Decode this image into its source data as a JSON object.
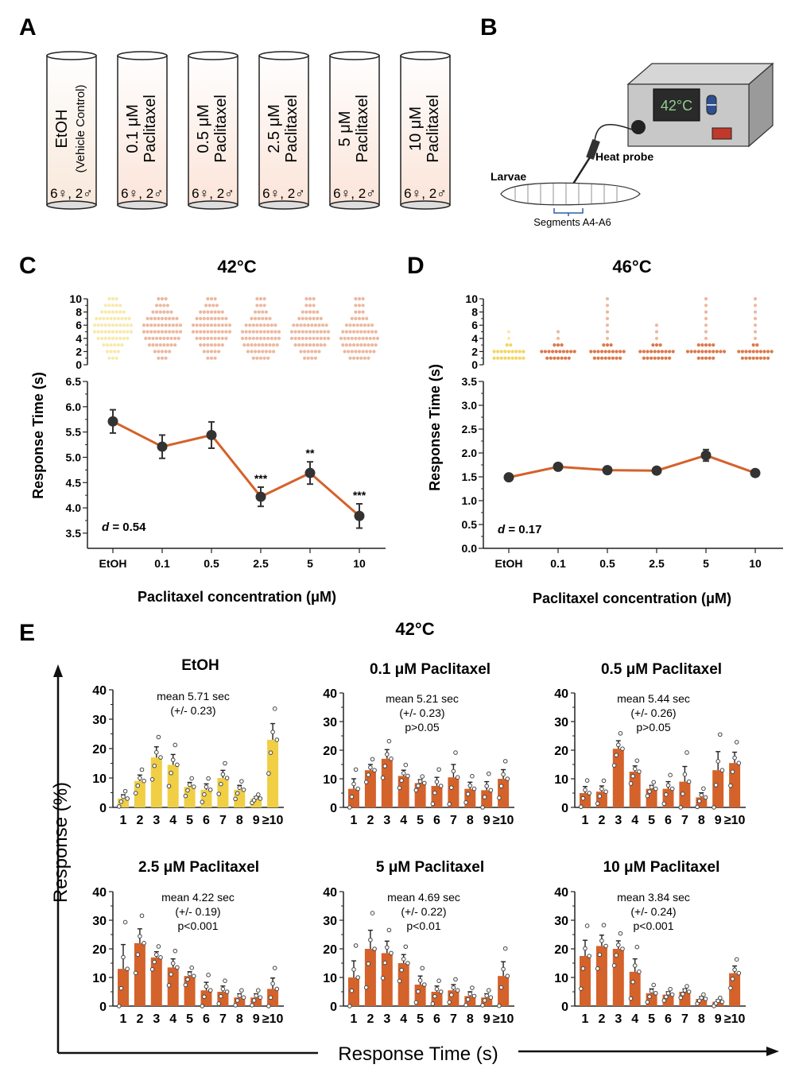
{
  "panel_letters": {
    "a": "A",
    "b": "B",
    "c": "C",
    "d": "D",
    "e": "E"
  },
  "panel_a": {
    "tubes": [
      {
        "line1": "EtOH",
        "line2": "(Vehicle Control)",
        "count": "6♀, 2♂"
      },
      {
        "line1": "0.1 μM",
        "line2": "Paclitaxel",
        "count": "6♀, 2♂"
      },
      {
        "line1": "0.5 μM",
        "line2": "Paclitaxel",
        "count": "6♀, 2♂"
      },
      {
        "line1": "2.5 μM",
        "line2": "Paclitaxel",
        "count": "6♀, 2♂"
      },
      {
        "line1": "5 μM",
        "line2": "Paclitaxel",
        "count": "6♀, 2♂"
      },
      {
        "line1": "10 μM",
        "line2": "Paclitaxel",
        "count": "6♀, 2♂"
      }
    ]
  },
  "panel_b": {
    "display": "42°C",
    "heat_probe_label": "Heat probe",
    "larvae_label": "Larvae",
    "segments_label": "Segments A4-A6"
  },
  "colors": {
    "etoh": "#f0cf45",
    "paclitaxel": "#d4622b",
    "line": "#d4622b",
    "marker": "#333333"
  },
  "chart_data": [
    {
      "id": "C",
      "type": "line",
      "title": "42°C",
      "xlabel": "Paclitaxel concentration (μM)",
      "ylabel": "Response Time (s)",
      "categories": [
        "EtOH",
        "0.1",
        "0.5",
        "2.5",
        "5",
        "10"
      ],
      "values": [
        5.71,
        5.21,
        5.44,
        4.22,
        4.69,
        3.84
      ],
      "errors": [
        0.23,
        0.23,
        0.26,
        0.19,
        0.22,
        0.24
      ],
      "ylim": [
        3.2,
        6.5
      ],
      "yticks": [
        "3.5",
        "4.0",
        "4.5",
        "5.0",
        "5.5",
        "6.0",
        "6.5"
      ],
      "significance": [
        "",
        "",
        "",
        "***",
        "**",
        "***"
      ],
      "effect_size": "d = 0.54",
      "dot_strip": {
        "yticks": [
          "0",
          "2",
          "4",
          "6",
          "8",
          "10"
        ],
        "max_levels": [
          10,
          10,
          10,
          10,
          10,
          10
        ]
      }
    },
    {
      "id": "D",
      "type": "line",
      "title": "46°C",
      "xlabel": "Paclitaxel concentration (μM)",
      "ylabel": "Response Time (s)",
      "categories": [
        "EtOH",
        "0.1",
        "0.5",
        "2.5",
        "5",
        "10"
      ],
      "values": [
        1.49,
        1.71,
        1.64,
        1.63,
        1.95,
        1.58
      ],
      "errors": [
        0.04,
        0.07,
        0.05,
        0.05,
        0.12,
        0.07
      ],
      "ylim": [
        0,
        3.5
      ],
      "yticks": [
        "0.0",
        "0.5",
        "1.0",
        "1.5",
        "2.0",
        "2.5",
        "3.0",
        "3.5"
      ],
      "significance": [
        "",
        "",
        "",
        "",
        "",
        ""
      ],
      "effect_size": "d = 0.17",
      "dot_strip": {
        "yticks": [
          "0",
          "2",
          "4",
          "6",
          "8",
          "10"
        ],
        "max_levels": [
          5,
          5,
          10,
          6,
          10,
          10
        ]
      }
    },
    {
      "id": "E",
      "type": "bar",
      "title": "42°C",
      "xlabel": "Response Time (s)",
      "ylabel": "Response (%)",
      "categories": [
        "1",
        "2",
        "3",
        "4",
        "5",
        "6",
        "7",
        "8",
        "9",
        "≥10"
      ],
      "ylim": [
        0,
        40
      ],
      "yticks": [
        "0",
        "10",
        "20",
        "30",
        "40"
      ],
      "subplots": [
        {
          "title": "EtOH",
          "ann": [
            "mean 5.71 sec",
            "(+/- 0.23)"
          ],
          "values": [
            3,
            9,
            17,
            14.5,
            7,
            6,
            10,
            6,
            3,
            23
          ],
          "errors": [
            1.3,
            2,
            3.6,
            3.5,
            1.5,
            2,
            2.6,
            1.5,
            0.7,
            5.5
          ]
        },
        {
          "title": "0.1 μM Paclitaxel",
          "ann": [
            "mean 5.21 sec",
            "(+/- 0.23)",
            "p>0.05"
          ],
          "values": [
            6.5,
            13,
            17,
            11,
            8.5,
            7.5,
            10.5,
            6.5,
            6,
            10
          ],
          "errors": [
            3.5,
            2,
            3.2,
            2,
            1.2,
            3,
            4.5,
            2.3,
            3,
            3.2
          ]
        },
        {
          "title": "0.5 μM Paclitaxel",
          "ann": [
            "mean 5.44 sec",
            "(+/- 0.26)",
            "p>0.05"
          ],
          "values": [
            5,
            5.5,
            20.5,
            12.5,
            6.5,
            6.5,
            9,
            3.5,
            13,
            15.5
          ],
          "errors": [
            2.3,
            2,
            2.8,
            2,
            1.2,
            2.5,
            5.3,
            1.6,
            6.5,
            3.8
          ]
        },
        {
          "title": "2.5 μM Paclitaxel",
          "ann": [
            "mean 4.22 sec",
            "(+/- 0.19)",
            "p<0.001"
          ],
          "values": [
            13,
            22,
            17,
            13.5,
            10.5,
            5.5,
            5,
            3,
            3,
            6
          ],
          "errors": [
            8.5,
            5,
            2,
            3,
            1.5,
            2.8,
            2,
            1.3,
            1.3,
            3.8
          ]
        },
        {
          "title": "5 μM Paclitaxel",
          "ann": [
            "mean 4.69 sec",
            "(+/- 0.22)",
            "p<0.01"
          ],
          "values": [
            10,
            20,
            18.5,
            15,
            7.5,
            5,
            5.5,
            3.5,
            3,
            10.5
          ],
          "errors": [
            5.8,
            6.5,
            4.2,
            3,
            3,
            2,
            2,
            1.5,
            1.3,
            5
          ]
        },
        {
          "title": "10 μM Paclitaxel",
          "ann": [
            "mean 3.84 sec",
            "(+/- 0.24)",
            "p<0.001"
          ],
          "values": [
            17.5,
            21,
            20,
            12,
            4.5,
            4,
            5,
            2.5,
            1.5,
            11.5
          ],
          "errors": [
            5.5,
            3.8,
            2.8,
            4.5,
            1.5,
            1,
            1,
            0.8,
            0.7,
            2.5
          ]
        }
      ]
    }
  ]
}
